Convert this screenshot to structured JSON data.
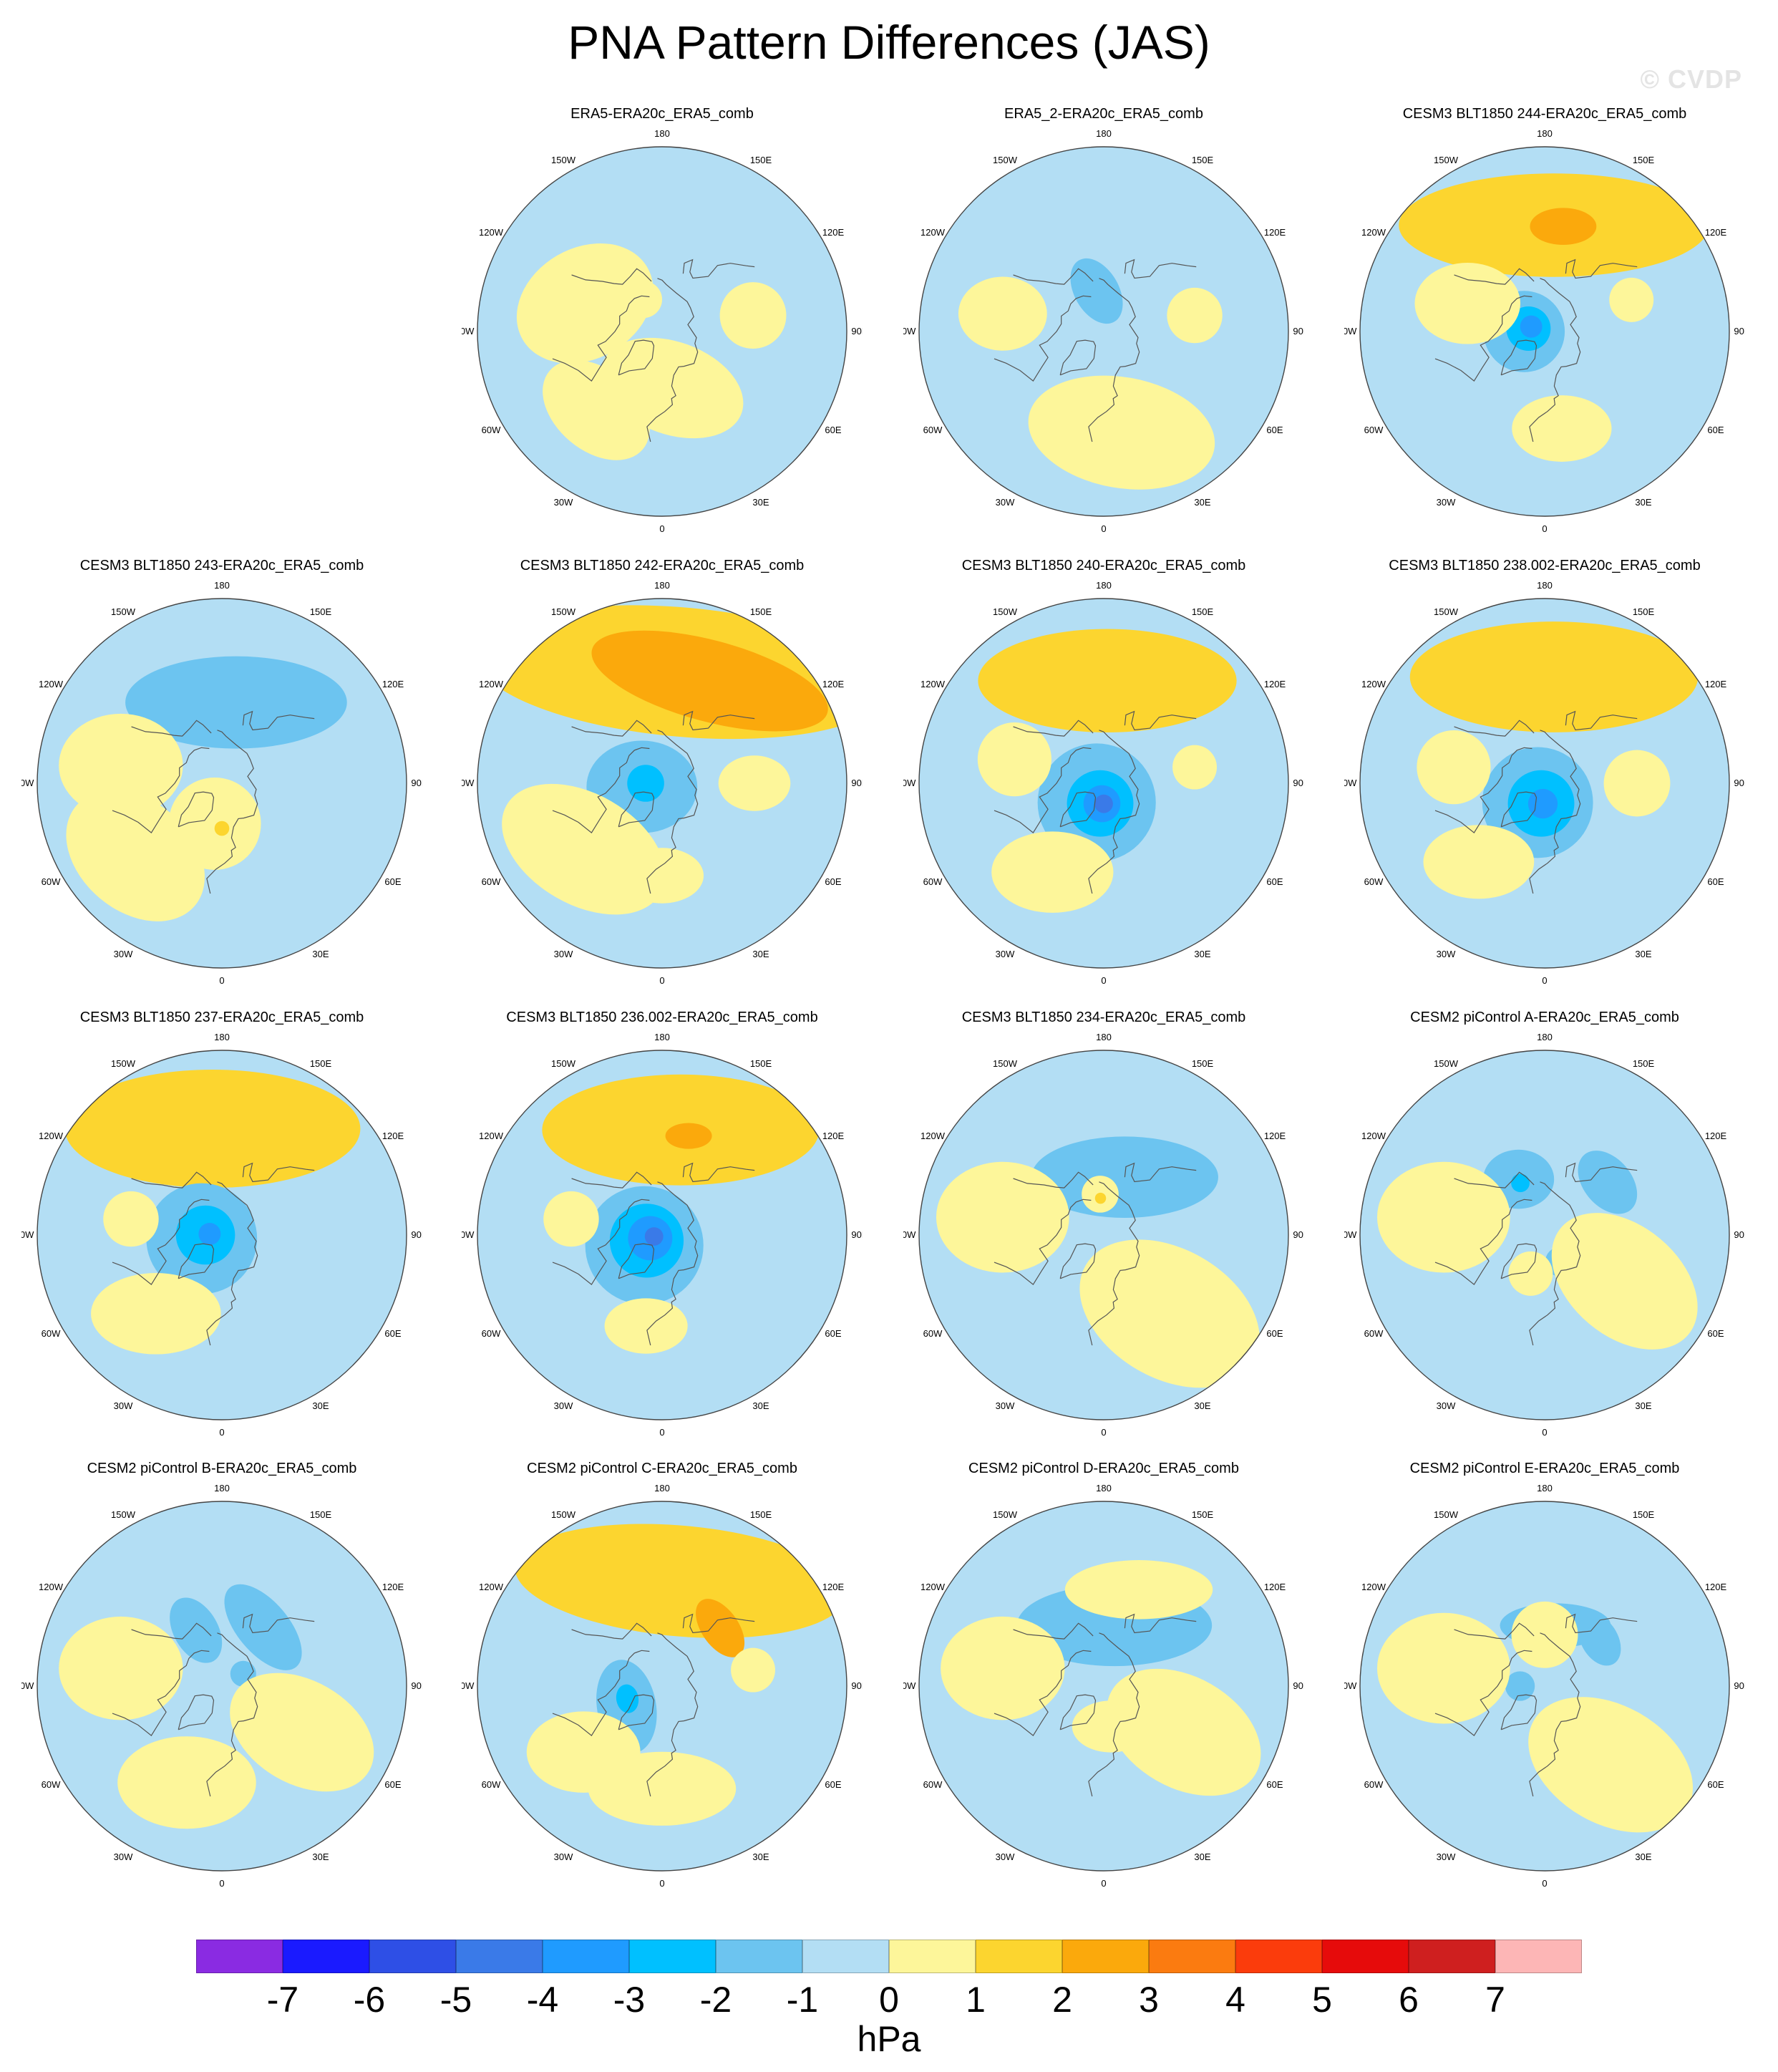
{
  "title": "PNA Pattern Differences (JAS)",
  "watermark": "© CVDP",
  "units": "hPa",
  "lon_labels": [
    "180",
    "150E",
    "120E",
    "90E",
    "60E",
    "30E",
    "0",
    "30W",
    "60W",
    "90W",
    "120W",
    "150W"
  ],
  "colorbar": {
    "ticks": [
      "-7",
      "-6",
      "-5",
      "-4",
      "-3",
      "-2",
      "-1",
      "0",
      "1",
      "2",
      "3",
      "4",
      "5",
      "6",
      "7"
    ],
    "colors": [
      "#8a2be2",
      "#1a1aff",
      "#2e4fe6",
      "#3a7ae8",
      "#1f9bff",
      "#00c0ff",
      "#6cc4f0",
      "#b3def4",
      "#fdf69a",
      "#fcd52f",
      "#fba90c",
      "#fb7b10",
      "#fb3c0c",
      "#e60b0b",
      "#cf1f1f",
      "#fdb6b6"
    ]
  },
  "chart_data": {
    "type": "map",
    "projection": "north polar stereographic",
    "variable": "sea level pressure pattern difference",
    "units": "hPa",
    "panels": [
      {
        "title": "ERA5-ERA20c_ERA5_comb",
        "features": [
          {
            "lat": 62,
            "lon": 10,
            "value": 0.5,
            "size": 0.25,
            "aspect": 1.6,
            "rot": 20
          },
          {
            "lat": 50,
            "lon": -110,
            "value": 0.5,
            "size": 0.3,
            "aspect": 1.3,
            "rot": -30
          },
          {
            "lat": 45,
            "lon": 100,
            "value": 0.5,
            "size": 0.18,
            "aspect": 1,
            "rot": 0
          },
          {
            "lat": 72,
            "lon": -150,
            "value": 0.5,
            "size": 0.1,
            "aspect": 1,
            "rot": 0
          },
          {
            "lat": 40,
            "lon": -40,
            "value": 0.5,
            "size": 0.22,
            "aspect": 1.5,
            "rot": 40
          }
        ]
      },
      {
        "title": "ERA5_2-ERA20c_ERA5_comb",
        "features": [
          {
            "lat": 70,
            "lon": -170,
            "value": -1.5,
            "size": 0.12,
            "aspect": 1.6,
            "rot": 60
          },
          {
            "lat": 40,
            "lon": -100,
            "value": 0.5,
            "size": 0.2,
            "aspect": 1.2,
            "rot": 0
          },
          {
            "lat": 40,
            "lon": 10,
            "value": 0.5,
            "size": 0.3,
            "aspect": 1.7,
            "rot": 10
          },
          {
            "lat": 45,
            "lon": 100,
            "value": 0.5,
            "size": 0.15,
            "aspect": 1,
            "rot": 0
          },
          {
            "lat": 55,
            "lon": -10,
            "value": 0.5,
            "size": 0.12,
            "aspect": 1,
            "rot": 0
          }
        ]
      },
      {
        "title": "CESM3 BLT1850 244-ERA20c_ERA5_comb",
        "features": [
          {
            "lat": 38,
            "lon": 175,
            "value": 1.5,
            "size": 0.28,
            "aspect": 3,
            "rot": 0
          },
          {
            "lat": 38,
            "lon": 170,
            "value": 2.5,
            "size": 0.1,
            "aspect": 1.8,
            "rot": 0
          },
          {
            "lat": 80,
            "lon": -90,
            "value": -1.5,
            "size": 0.22,
            "aspect": 1,
            "rot": 0
          },
          {
            "lat": 82,
            "lon": -100,
            "value": -2.5,
            "size": 0.12,
            "aspect": 1,
            "rot": 0
          },
          {
            "lat": 83,
            "lon": -110,
            "value": -3.5,
            "size": 0.06,
            "aspect": 1,
            "rot": 0
          },
          {
            "lat": 50,
            "lon": -110,
            "value": 0.5,
            "size": 0.22,
            "aspect": 1.3,
            "rot": 0
          },
          {
            "lat": 42,
            "lon": 10,
            "value": 0.5,
            "size": 0.18,
            "aspect": 1.5,
            "rot": 0
          },
          {
            "lat": 45,
            "lon": 110,
            "value": 0.5,
            "size": 0.12,
            "aspect": 1,
            "rot": 0
          }
        ]
      },
      {
        "title": "CESM3 BLT1850 243-ERA20c_ERA5_comb",
        "features": [
          {
            "lat": 50,
            "lon": 170,
            "value": -1.5,
            "size": 0.25,
            "aspect": 2.4,
            "rot": 0
          },
          {
            "lat": 70,
            "lon": -10,
            "value": 0.5,
            "size": 0.25,
            "aspect": 1,
            "rot": 0
          },
          {
            "lat": 68,
            "lon": 0,
            "value": 1.5,
            "size": 0.04,
            "aspect": 1,
            "rot": 0
          },
          {
            "lat": 40,
            "lon": -100,
            "value": 0.5,
            "size": 0.28,
            "aspect": 1.2,
            "rot": 0
          },
          {
            "lat": 35,
            "lon": -50,
            "value": 0.5,
            "size": 0.3,
            "aspect": 1.4,
            "rot": 40
          }
        ]
      },
      {
        "title": "CESM3 BLT1850 242-ERA20c_ERA5_comb",
        "features": [
          {
            "lat": 35,
            "lon": 170,
            "value": 1.5,
            "size": 0.35,
            "aspect": 3.2,
            "rot": 5
          },
          {
            "lat": 35,
            "lon": 155,
            "value": 2.5,
            "size": 0.22,
            "aspect": 3,
            "rot": 15
          },
          {
            "lat": 80,
            "lon": -80,
            "value": -1.5,
            "size": 0.25,
            "aspect": 1.2,
            "rot": 0
          },
          {
            "lat": 82,
            "lon": -90,
            "value": -2.5,
            "size": 0.1,
            "aspect": 1,
            "rot": 0
          },
          {
            "lat": 40,
            "lon": -50,
            "value": 0.5,
            "size": 0.3,
            "aspect": 1.6,
            "rot": 30
          },
          {
            "lat": 45,
            "lon": 90,
            "value": 0.5,
            "size": 0.15,
            "aspect": 1.3,
            "rot": 0
          },
          {
            "lat": 45,
            "lon": 0,
            "value": 0.5,
            "size": 0.15,
            "aspect": 1.5,
            "rot": 0
          }
        ]
      },
      {
        "title": "CESM3 BLT1850 240-ERA20c_ERA5_comb",
        "features": [
          {
            "lat": 40,
            "lon": 178,
            "value": 1.5,
            "size": 0.28,
            "aspect": 2.5,
            "rot": 0
          },
          {
            "lat": 80,
            "lon": -20,
            "value": -1.5,
            "size": 0.32,
            "aspect": 1,
            "rot": 0
          },
          {
            "lat": 80,
            "lon": -10,
            "value": -2.5,
            "size": 0.18,
            "aspect": 1,
            "rot": 0
          },
          {
            "lat": 80,
            "lon": -5,
            "value": -3.5,
            "size": 0.1,
            "aspect": 1,
            "rot": 0
          },
          {
            "lat": 80,
            "lon": 0,
            "value": -4.5,
            "size": 0.05,
            "aspect": 1,
            "rot": 0
          },
          {
            "lat": 45,
            "lon": -105,
            "value": 0.5,
            "size": 0.2,
            "aspect": 1,
            "rot": 0
          },
          {
            "lat": 40,
            "lon": -30,
            "value": 0.5,
            "size": 0.22,
            "aspect": 1.5,
            "rot": 0
          },
          {
            "lat": 45,
            "lon": 100,
            "value": 0.5,
            "size": 0.12,
            "aspect": 1,
            "rot": 0
          }
        ]
      },
      {
        "title": "CESM3 BLT1850 238.002-ERA20c_ERA5_comb",
        "features": [
          {
            "lat": 38,
            "lon": 175,
            "value": 1.5,
            "size": 0.3,
            "aspect": 2.6,
            "rot": 0
          },
          {
            "lat": 80,
            "lon": -20,
            "value": -1.5,
            "size": 0.3,
            "aspect": 1,
            "rot": 0
          },
          {
            "lat": 80,
            "lon": -10,
            "value": -2.5,
            "size": 0.18,
            "aspect": 1,
            "rot": 0
          },
          {
            "lat": 80,
            "lon": -5,
            "value": -3.5,
            "size": 0.08,
            "aspect": 1,
            "rot": 0
          },
          {
            "lat": 45,
            "lon": -100,
            "value": 0.5,
            "size": 0.2,
            "aspect": 1,
            "rot": 0
          },
          {
            "lat": 40,
            "lon": -40,
            "value": 0.5,
            "size": 0.2,
            "aspect": 1.5,
            "rot": 0
          },
          {
            "lat": 45,
            "lon": 90,
            "value": 0.5,
            "size": 0.18,
            "aspect": 1,
            "rot": 0
          }
        ]
      },
      {
        "title": "CESM3 BLT1850 237-ERA20c_ERA5_comb",
        "features": [
          {
            "lat": 38,
            "lon": -175,
            "value": 1.5,
            "size": 0.32,
            "aspect": 2.5,
            "rot": 0
          },
          {
            "lat": 80,
            "lon": -80,
            "value": -1.5,
            "size": 0.3,
            "aspect": 1,
            "rot": 0
          },
          {
            "lat": 82,
            "lon": -90,
            "value": -2.5,
            "size": 0.16,
            "aspect": 1,
            "rot": 0
          },
          {
            "lat": 84,
            "lon": -95,
            "value": -3.5,
            "size": 0.06,
            "aspect": 1,
            "rot": 0
          },
          {
            "lat": 40,
            "lon": -40,
            "value": 0.5,
            "size": 0.22,
            "aspect": 1.6,
            "rot": 0
          },
          {
            "lat": 45,
            "lon": -100,
            "value": 0.5,
            "size": 0.15,
            "aspect": 1,
            "rot": 0
          }
        ]
      },
      {
        "title": "CESM3 BLT1850 236.002-ERA20c_ERA5_comb",
        "features": [
          {
            "lat": 38,
            "lon": 170,
            "value": 1.5,
            "size": 0.3,
            "aspect": 2.5,
            "rot": 0
          },
          {
            "lat": 40,
            "lon": 165,
            "value": 2.5,
            "size": 0.07,
            "aspect": 1.8,
            "rot": 0
          },
          {
            "lat": 80,
            "lon": -60,
            "value": -1.5,
            "size": 0.32,
            "aspect": 1,
            "rot": 0
          },
          {
            "lat": 82,
            "lon": -70,
            "value": -2.5,
            "size": 0.2,
            "aspect": 1,
            "rot": 0
          },
          {
            "lat": 84,
            "lon": -75,
            "value": -3.5,
            "size": 0.12,
            "aspect": 1,
            "rot": 0
          },
          {
            "lat": 86,
            "lon": -80,
            "value": -4.5,
            "size": 0.05,
            "aspect": 1,
            "rot": 0
          },
          {
            "lat": 45,
            "lon": -100,
            "value": 0.5,
            "size": 0.15,
            "aspect": 1,
            "rot": 0
          },
          {
            "lat": 45,
            "lon": -10,
            "value": 0.5,
            "size": 0.15,
            "aspect": 1.5,
            "rot": 0
          }
        ]
      },
      {
        "title": "CESM3 BLT1850 234-ERA20c_ERA5_comb",
        "features": [
          {
            "lat": 60,
            "lon": 160,
            "value": -1.5,
            "size": 0.22,
            "aspect": 2.3,
            "rot": 0
          },
          {
            "lat": 40,
            "lon": -100,
            "value": 0.5,
            "size": 0.3,
            "aspect": 1.2,
            "rot": 0
          },
          {
            "lat": 40,
            "lon": 40,
            "value": 0.5,
            "size": 0.35,
            "aspect": 1.5,
            "rot": 30
          },
          {
            "lat": 70,
            "lon": -175,
            "value": 0.5,
            "size": 0.1,
            "aspect": 1,
            "rot": 0
          },
          {
            "lat": 72,
            "lon": -175,
            "value": 1.5,
            "size": 0.03,
            "aspect": 1,
            "rot": 0
          }
        ]
      },
      {
        "title": "CESM2 piControl A-ERA20c_ERA5_comb",
        "features": [
          {
            "lat": 60,
            "lon": -155,
            "value": -1.5,
            "size": 0.16,
            "aspect": 1.2,
            "rot": 0
          },
          {
            "lat": 62,
            "lon": -155,
            "value": -2.5,
            "size": 0.05,
            "aspect": 1,
            "rot": 0
          },
          {
            "lat": 50,
            "lon": 130,
            "value": -1.5,
            "size": 0.13,
            "aspect": 1.5,
            "rot": 50
          },
          {
            "lat": 75,
            "lon": 30,
            "value": -1.5,
            "size": 0.08,
            "aspect": 1,
            "rot": 0
          },
          {
            "lat": 40,
            "lon": -100,
            "value": 0.5,
            "size": 0.3,
            "aspect": 1.2,
            "rot": 0
          },
          {
            "lat": 45,
            "lon": 60,
            "value": 0.5,
            "size": 0.3,
            "aspect": 1.5,
            "rot": 40
          },
          {
            "lat": 70,
            "lon": -20,
            "value": 0.5,
            "size": 0.12,
            "aspect": 1,
            "rot": 0
          }
        ]
      },
      {
        "title": "CESM2 piControl B-ERA20c_ERA5_comb",
        "features": [
          {
            "lat": 60,
            "lon": -155,
            "value": -1.5,
            "size": 0.12,
            "aspect": 1.6,
            "rot": 60
          },
          {
            "lat": 55,
            "lon": 145,
            "value": -1.5,
            "size": 0.14,
            "aspect": 2,
            "rot": 50
          },
          {
            "lat": 78,
            "lon": 120,
            "value": -1.5,
            "size": 0.07,
            "aspect": 1,
            "rot": 0
          },
          {
            "lat": 40,
            "lon": -100,
            "value": 0.5,
            "size": 0.28,
            "aspect": 1.2,
            "rot": 0
          },
          {
            "lat": 45,
            "lon": 60,
            "value": 0.5,
            "size": 0.28,
            "aspect": 1.5,
            "rot": 30
          },
          {
            "lat": 40,
            "lon": -20,
            "value": 0.5,
            "size": 0.25,
            "aspect": 1.5,
            "rot": 0
          }
        ]
      },
      {
        "title": "CESM2 piControl C-ERA20c_ERA5_comb",
        "features": [
          {
            "lat": 38,
            "lon": 170,
            "value": 1.5,
            "size": 0.3,
            "aspect": 3,
            "rot": 5
          },
          {
            "lat": 50,
            "lon": 135,
            "value": 2.5,
            "size": 0.1,
            "aspect": 1.8,
            "rot": 55
          },
          {
            "lat": 70,
            "lon": -60,
            "value": -1.5,
            "size": 0.16,
            "aspect": 1.6,
            "rot": 80
          },
          {
            "lat": 72,
            "lon": -70,
            "value": -2.5,
            "size": 0.06,
            "aspect": 1.3,
            "rot": 80
          },
          {
            "lat": 40,
            "lon": -50,
            "value": 0.5,
            "size": 0.22,
            "aspect": 1.4,
            "rot": 0
          },
          {
            "lat": 40,
            "lon": 0,
            "value": 0.5,
            "size": 0.2,
            "aspect": 2,
            "rot": 0
          },
          {
            "lat": 45,
            "lon": 100,
            "value": 0.5,
            "size": 0.12,
            "aspect": 1,
            "rot": 0
          }
        ]
      },
      {
        "title": "CESM2 piControl D-ERA20c_ERA5_comb",
        "features": [
          {
            "lat": 60,
            "lon": 170,
            "value": -1.5,
            "size": 0.22,
            "aspect": 2.4,
            "rot": 0
          },
          {
            "lat": 40,
            "lon": -100,
            "value": 0.5,
            "size": 0.28,
            "aspect": 1.2,
            "rot": 0
          },
          {
            "lat": 45,
            "lon": 60,
            "value": 0.5,
            "size": 0.3,
            "aspect": 1.5,
            "rot": 30
          },
          {
            "lat": 70,
            "lon": 10,
            "value": 0.5,
            "size": 0.14,
            "aspect": 1.5,
            "rot": 0
          },
          {
            "lat": 40,
            "lon": 160,
            "value": 0.5,
            "size": 0.16,
            "aspect": 2.5,
            "rot": 0
          }
        ]
      },
      {
        "title": "CESM2 piControl E-ERA20c_ERA5_comb",
        "features": [
          {
            "lat": 60,
            "lon": 170,
            "value": -1.5,
            "size": 0.12,
            "aspect": 2.5,
            "rot": 0
          },
          {
            "lat": 55,
            "lon": 130,
            "value": -1.5,
            "size": 0.1,
            "aspect": 1.5,
            "rot": 60
          },
          {
            "lat": 78,
            "lon": -90,
            "value": -1.5,
            "size": 0.08,
            "aspect": 1,
            "rot": 0
          },
          {
            "lat": 40,
            "lon": -100,
            "value": 0.5,
            "size": 0.3,
            "aspect": 1.2,
            "rot": 0
          },
          {
            "lat": 40,
            "lon": 40,
            "value": 0.5,
            "size": 0.32,
            "aspect": 1.5,
            "rot": 30
          },
          {
            "lat": 65,
            "lon": 180,
            "value": 0.5,
            "size": 0.18,
            "aspect": 1,
            "rot": 0
          }
        ]
      }
    ]
  }
}
